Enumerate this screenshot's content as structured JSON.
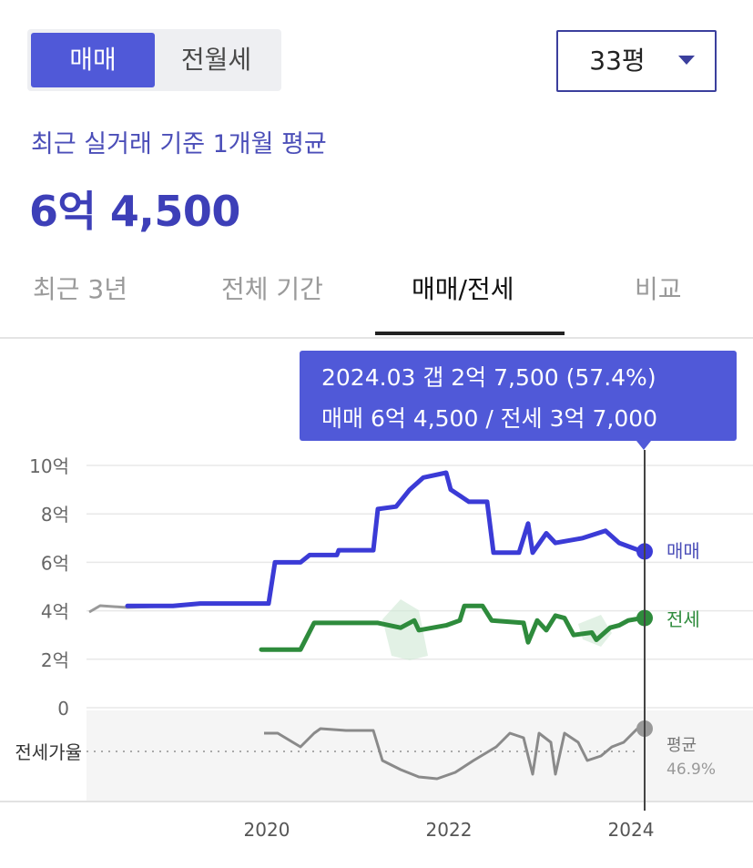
{
  "toggle": {
    "buy_label": "매매",
    "rent_label": "전월세"
  },
  "area_select": {
    "value": "33평"
  },
  "summary": {
    "subtitle": "최근 실거래 기준 1개월 평균",
    "price": "6억 4,500"
  },
  "tabs": [
    {
      "label": "최근 3년"
    },
    {
      "label": "전체 기간"
    },
    {
      "label": "매매/전세",
      "active": true
    },
    {
      "label": "비교"
    }
  ],
  "tooltip": {
    "line1": "2024.03  갭 2억 7,500 (57.4%)",
    "line2": "매매 6억 4,500 / 전세 3억 7,000"
  },
  "colors": {
    "accent": "#5059d8",
    "sale": "#3b3bd6",
    "jeonse": "#2e8b3c",
    "ratio": "#8a8a8a",
    "history": "#999999"
  },
  "chart_data": {
    "type": "line",
    "x_ticks": [
      "2020",
      "2022",
      "2024"
    ],
    "y_ticks": [
      "10억",
      "8억",
      "6억",
      "4억",
      "2억",
      "0"
    ],
    "ylim": [
      0,
      10
    ],
    "y_unit": "억",
    "grid": true,
    "series": [
      {
        "name": "매매",
        "points": [
          [
            2018.5,
            4.2
          ],
          [
            2019.0,
            4.2
          ],
          [
            2019.3,
            4.3
          ],
          [
            2019.6,
            4.3
          ],
          [
            2019.9,
            4.3
          ],
          [
            2020.05,
            4.3
          ],
          [
            2020.12,
            6.0
          ],
          [
            2020.4,
            6.0
          ],
          [
            2020.5,
            6.3
          ],
          [
            2020.8,
            6.3
          ],
          [
            2020.82,
            6.5
          ],
          [
            2021.2,
            6.5
          ],
          [
            2021.25,
            8.2
          ],
          [
            2021.45,
            8.3
          ],
          [
            2021.6,
            9.0
          ],
          [
            2021.75,
            9.5
          ],
          [
            2022.0,
            9.7
          ],
          [
            2022.05,
            9.0
          ],
          [
            2022.25,
            8.5
          ],
          [
            2022.45,
            8.5
          ],
          [
            2022.52,
            6.4
          ],
          [
            2022.8,
            6.4
          ],
          [
            2022.9,
            7.6
          ],
          [
            2022.95,
            6.4
          ],
          [
            2023.1,
            7.2
          ],
          [
            2023.2,
            6.8
          ],
          [
            2023.5,
            7.0
          ],
          [
            2023.75,
            7.3
          ],
          [
            2023.9,
            6.8
          ],
          [
            2024.15,
            6.45
          ]
        ]
      },
      {
        "name": "전세",
        "points": [
          [
            2019.97,
            2.4
          ],
          [
            2020.4,
            2.4
          ],
          [
            2020.55,
            3.5
          ],
          [
            2021.25,
            3.5
          ],
          [
            2021.5,
            3.3
          ],
          [
            2021.65,
            3.6
          ],
          [
            2021.7,
            3.2
          ],
          [
            2022.0,
            3.4
          ],
          [
            2022.15,
            3.6
          ],
          [
            2022.2,
            4.2
          ],
          [
            2022.4,
            4.2
          ],
          [
            2022.5,
            3.6
          ],
          [
            2022.85,
            3.5
          ],
          [
            2022.9,
            2.7
          ],
          [
            2023.0,
            3.6
          ],
          [
            2023.1,
            3.2
          ],
          [
            2023.2,
            3.8
          ],
          [
            2023.3,
            3.7
          ],
          [
            2023.4,
            3.0
          ],
          [
            2023.6,
            3.1
          ],
          [
            2023.65,
            2.8
          ],
          [
            2023.8,
            3.3
          ],
          [
            2023.9,
            3.4
          ],
          [
            2024.0,
            3.6
          ],
          [
            2024.15,
            3.7
          ]
        ]
      }
    ],
    "ratio": {
      "label": "전세가율",
      "avg_label": "평균",
      "avg_value": "46.9%",
      "end_label": "전세가율"
    },
    "end_labels": {
      "sale": "매매",
      "jeonse": "전세"
    }
  }
}
